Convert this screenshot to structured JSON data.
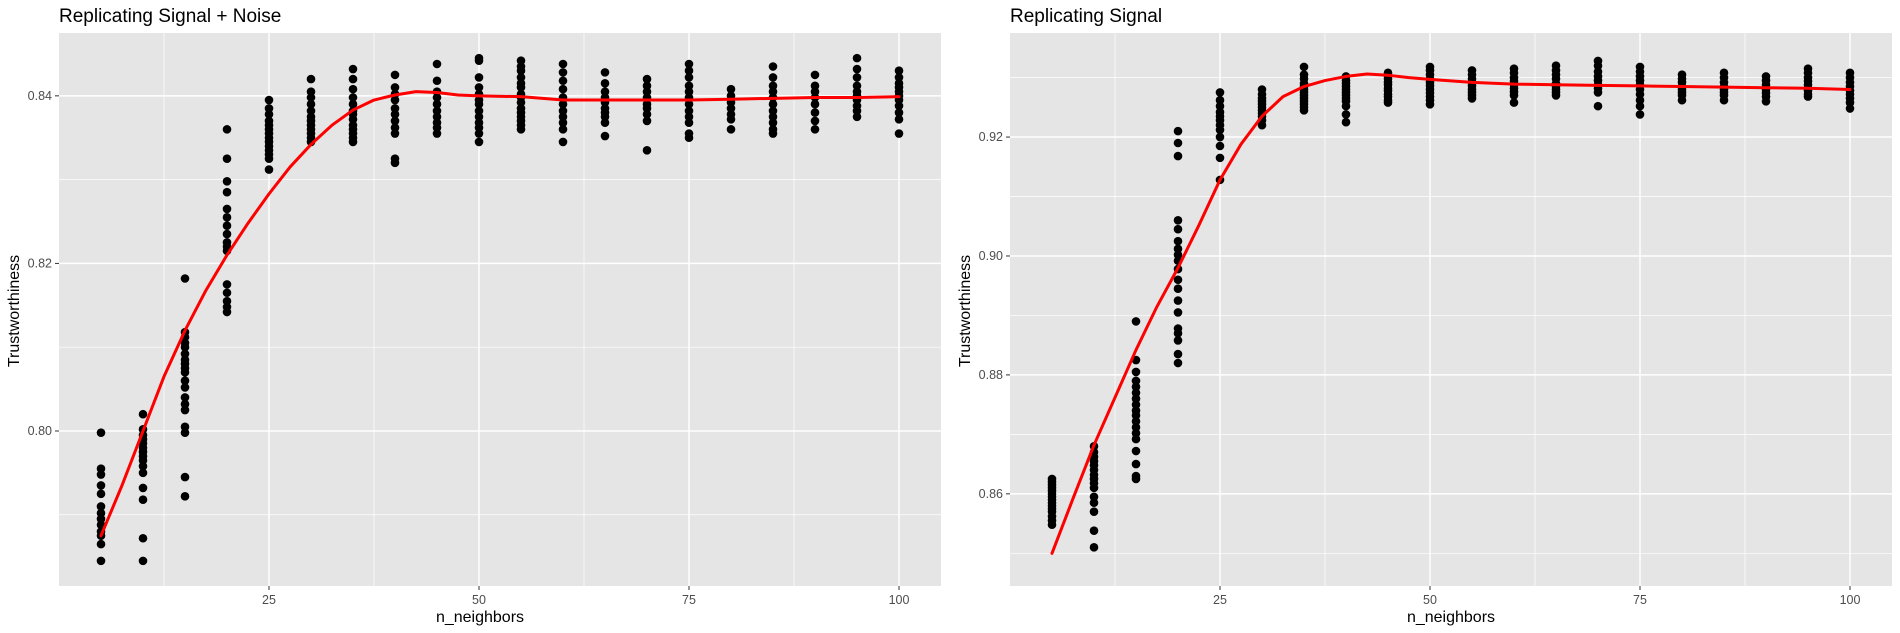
{
  "figure": {
    "background": "#ffffff",
    "panel_background": "#e5e5e5",
    "grid_color": "#ffffff",
    "point_color": "#000000",
    "smooth_color": "#ff0000"
  },
  "chart_data": [
    {
      "type": "scatter",
      "title": "Replicating Signal + Noise",
      "xlabel": "n_neighbors",
      "ylabel": "Trustworthiness",
      "xlim": [
        0,
        105
      ],
      "ylim": [
        0.7815,
        0.8475
      ],
      "xticks": [
        25,
        50,
        75,
        100
      ],
      "xtick_labels": [
        "25",
        "50",
        "75",
        "100"
      ],
      "yticks": [
        0.8,
        0.82,
        0.84
      ],
      "ytick_labels": [
        "0.80",
        "0.82",
        "0.84"
      ],
      "grid": true,
      "point_groups": [
        {
          "x": 5,
          "y": [
            0.7998,
            0.7955,
            0.7948,
            0.7935,
            0.7925,
            0.791,
            0.7902,
            0.7895,
            0.7888,
            0.788,
            0.7875,
            0.7865,
            0.7845
          ]
        },
        {
          "x": 10,
          "y": [
            0.802,
            0.8002,
            0.7995,
            0.799,
            0.7985,
            0.798,
            0.7975,
            0.797,
            0.7965,
            0.7958,
            0.795,
            0.7932,
            0.7918,
            0.7872,
            0.7845
          ]
        },
        {
          "x": 15,
          "y": [
            0.8182,
            0.8118,
            0.8112,
            0.8105,
            0.81,
            0.8092,
            0.8085,
            0.808,
            0.8075,
            0.807,
            0.806,
            0.8052,
            0.804,
            0.8032,
            0.8025,
            0.8005,
            0.7998,
            0.7945,
            0.7922
          ]
        },
        {
          "x": 20,
          "y": [
            0.836,
            0.8325,
            0.8298,
            0.8285,
            0.8265,
            0.8255,
            0.8245,
            0.8235,
            0.8225,
            0.822,
            0.8215,
            0.8175,
            0.8165,
            0.8155,
            0.8148,
            0.8142
          ]
        },
        {
          "x": 25,
          "y": [
            0.8395,
            0.8385,
            0.8378,
            0.837,
            0.8365,
            0.836,
            0.8355,
            0.835,
            0.8345,
            0.834,
            0.8335,
            0.833,
            0.8325,
            0.8312
          ]
        },
        {
          "x": 30,
          "y": [
            0.842,
            0.8405,
            0.8398,
            0.839,
            0.8382,
            0.8375,
            0.837,
            0.8365,
            0.836,
            0.8355,
            0.835,
            0.8345
          ]
        },
        {
          "x": 35,
          "y": [
            0.8432,
            0.842,
            0.8408,
            0.8398,
            0.839,
            0.8382,
            0.8378,
            0.8372,
            0.8365,
            0.836,
            0.8355,
            0.835,
            0.8345
          ]
        },
        {
          "x": 40,
          "y": [
            0.8425,
            0.841,
            0.8402,
            0.8395,
            0.8385,
            0.8378,
            0.837,
            0.8362,
            0.8355,
            0.8325,
            0.832
          ]
        },
        {
          "x": 45,
          "y": [
            0.8438,
            0.8418,
            0.8405,
            0.8398,
            0.839,
            0.8382,
            0.8375,
            0.8368,
            0.8362,
            0.8355
          ]
        },
        {
          "x": 50,
          "y": [
            0.8445,
            0.8442,
            0.8422,
            0.841,
            0.8402,
            0.8395,
            0.839,
            0.8382,
            0.8375,
            0.8368,
            0.8362,
            0.8355,
            0.8345
          ]
        },
        {
          "x": 55,
          "y": [
            0.8442,
            0.8435,
            0.843,
            0.8422,
            0.8415,
            0.841,
            0.8402,
            0.8398,
            0.8392,
            0.8385,
            0.838,
            0.8375,
            0.837,
            0.8365,
            0.836
          ]
        },
        {
          "x": 60,
          "y": [
            0.8438,
            0.8428,
            0.8418,
            0.8408,
            0.8398,
            0.839,
            0.8382,
            0.8375,
            0.8368,
            0.836,
            0.8345
          ]
        },
        {
          "x": 65,
          "y": [
            0.8428,
            0.8415,
            0.8405,
            0.8398,
            0.8392,
            0.8385,
            0.838,
            0.8375,
            0.8368,
            0.8352
          ]
        },
        {
          "x": 70,
          "y": [
            0.842,
            0.8412,
            0.8405,
            0.8398,
            0.839,
            0.8385,
            0.8378,
            0.837,
            0.8335
          ]
        },
        {
          "x": 75,
          "y": [
            0.8438,
            0.843,
            0.8422,
            0.8412,
            0.8405,
            0.8398,
            0.839,
            0.8382,
            0.8375,
            0.8368,
            0.8355,
            0.835
          ]
        },
        {
          "x": 80,
          "y": [
            0.8408,
            0.84,
            0.8392,
            0.8385,
            0.8378,
            0.8372,
            0.836
          ]
        },
        {
          "x": 85,
          "y": [
            0.8435,
            0.8422,
            0.8412,
            0.8405,
            0.8398,
            0.839,
            0.8382,
            0.8375,
            0.8368,
            0.836,
            0.8355
          ]
        },
        {
          "x": 90,
          "y": [
            0.8425,
            0.8412,
            0.8405,
            0.8398,
            0.839,
            0.838,
            0.837,
            0.836
          ]
        },
        {
          "x": 95,
          "y": [
            0.8445,
            0.8432,
            0.8422,
            0.8412,
            0.8405,
            0.84,
            0.8395,
            0.8388,
            0.8382,
            0.8375
          ]
        },
        {
          "x": 100,
          "y": [
            0.843,
            0.8422,
            0.8415,
            0.841,
            0.8405,
            0.84,
            0.8395,
            0.8388,
            0.838,
            0.8372,
            0.8355
          ]
        }
      ],
      "smooth_line": {
        "x": [
          5,
          7.5,
          10,
          12.5,
          15,
          17.5,
          20,
          22.5,
          25,
          27.5,
          30,
          32.5,
          35,
          37.5,
          40,
          42.5,
          45,
          47.5,
          50,
          55,
          60,
          65,
          70,
          75,
          80,
          85,
          90,
          95,
          100
        ],
        "y": [
          0.7875,
          0.7935,
          0.8,
          0.8065,
          0.812,
          0.8168,
          0.821,
          0.8248,
          0.8283,
          0.8315,
          0.8342,
          0.8365,
          0.8383,
          0.8395,
          0.8401,
          0.8405,
          0.8404,
          0.8401,
          0.84,
          0.8399,
          0.8395,
          0.8395,
          0.8395,
          0.8395,
          0.8396,
          0.8397,
          0.8398,
          0.8398,
          0.8399
        ]
      }
    },
    {
      "type": "scatter",
      "title": "Replicating Signal",
      "xlabel": "n_neighbors",
      "ylabel": "Trustworthiness",
      "xlim": [
        0,
        105
      ],
      "ylim": [
        0.8445,
        0.9375
      ],
      "xticks": [
        25,
        50,
        75,
        100
      ],
      "xtick_labels": [
        "25",
        "50",
        "75",
        "100"
      ],
      "yticks": [
        0.86,
        0.88,
        0.9,
        0.92
      ],
      "ytick_labels": [
        "0.86",
        "0.88",
        "0.90",
        "0.92"
      ],
      "grid": true,
      "point_groups": [
        {
          "x": 5,
          "y": [
            0.8625,
            0.862,
            0.8615,
            0.861,
            0.8605,
            0.86,
            0.8595,
            0.859,
            0.8585,
            0.858,
            0.8575,
            0.857,
            0.8562,
            0.8555,
            0.8548
          ]
        },
        {
          "x": 10,
          "y": [
            0.868,
            0.867,
            0.8662,
            0.8655,
            0.8648,
            0.864,
            0.8632,
            0.8625,
            0.8618,
            0.861,
            0.8595,
            0.8585,
            0.857,
            0.8538,
            0.851
          ]
        },
        {
          "x": 15,
          "y": [
            0.889,
            0.8825,
            0.8805,
            0.879,
            0.878,
            0.877,
            0.876,
            0.875,
            0.874,
            0.8732,
            0.8722,
            0.8712,
            0.8702,
            0.8692,
            0.8672,
            0.865,
            0.863,
            0.8625
          ]
        },
        {
          "x": 20,
          "y": [
            0.921,
            0.919,
            0.9168,
            0.906,
            0.9045,
            0.9025,
            0.9012,
            0.9002,
            0.8992,
            0.8978,
            0.896,
            0.8945,
            0.8925,
            0.8905,
            0.8878,
            0.887,
            0.8858,
            0.8835,
            0.882
          ]
        },
        {
          "x": 25,
          "y": [
            0.9275,
            0.9262,
            0.9252,
            0.9242,
            0.9235,
            0.9228,
            0.922,
            0.9212,
            0.92,
            0.9185,
            0.9165,
            0.9128
          ]
        },
        {
          "x": 30,
          "y": [
            0.928,
            0.9272,
            0.9265,
            0.926,
            0.9255,
            0.925,
            0.9245,
            0.924,
            0.9235,
            0.9228,
            0.922
          ]
        },
        {
          "x": 35,
          "y": [
            0.9318,
            0.9305,
            0.9298,
            0.929,
            0.9285,
            0.928,
            0.9275,
            0.927,
            0.9265,
            0.926,
            0.9255,
            0.925,
            0.9245
          ]
        },
        {
          "x": 40,
          "y": [
            0.9302,
            0.9295,
            0.929,
            0.9285,
            0.928,
            0.9275,
            0.927,
            0.9265,
            0.926,
            0.9252,
            0.9238,
            0.9225
          ]
        },
        {
          "x": 45,
          "y": [
            0.9308,
            0.9302,
            0.9298,
            0.9292,
            0.9288,
            0.9282,
            0.9278,
            0.9272,
            0.9268,
            0.9262,
            0.9258
          ]
        },
        {
          "x": 50,
          "y": [
            0.9318,
            0.9312,
            0.9305,
            0.9298,
            0.9292,
            0.9286,
            0.928,
            0.9274,
            0.9268,
            0.9262,
            0.9255
          ]
        },
        {
          "x": 55,
          "y": [
            0.9312,
            0.9305,
            0.9298,
            0.9292,
            0.9286,
            0.928,
            0.9275,
            0.927,
            0.9265
          ]
        },
        {
          "x": 60,
          "y": [
            0.9315,
            0.9308,
            0.93,
            0.9294,
            0.9288,
            0.9282,
            0.9276,
            0.927,
            0.9258
          ]
        },
        {
          "x": 65,
          "y": [
            0.932,
            0.9312,
            0.9305,
            0.9298,
            0.929,
            0.9285,
            0.928,
            0.9275,
            0.927
          ]
        },
        {
          "x": 70,
          "y": [
            0.9328,
            0.932,
            0.931,
            0.9302,
            0.9295,
            0.9288,
            0.9282,
            0.9275,
            0.9252
          ]
        },
        {
          "x": 75,
          "y": [
            0.9318,
            0.931,
            0.9302,
            0.9295,
            0.9288,
            0.928,
            0.9272,
            0.9262,
            0.9252,
            0.9238
          ]
        },
        {
          "x": 80,
          "y": [
            0.9305,
            0.9298,
            0.9292,
            0.9285,
            0.928,
            0.9275,
            0.927,
            0.9262
          ]
        },
        {
          "x": 85,
          "y": [
            0.9308,
            0.93,
            0.9292,
            0.9285,
            0.928,
            0.9275,
            0.927,
            0.9262
          ]
        },
        {
          "x": 90,
          "y": [
            0.9302,
            0.9295,
            0.9288,
            0.928,
            0.9274,
            0.9268,
            0.926
          ]
        },
        {
          "x": 95,
          "y": [
            0.9315,
            0.9308,
            0.93,
            0.9294,
            0.9288,
            0.9282,
            0.9278,
            0.9272,
            0.9268
          ]
        },
        {
          "x": 100,
          "y": [
            0.9308,
            0.93,
            0.9292,
            0.9285,
            0.9278,
            0.9272,
            0.9265,
            0.9258,
            0.9248
          ]
        }
      ],
      "smooth_line": {
        "x": [
          5,
          7.5,
          10,
          12.5,
          15,
          17.5,
          20,
          22.5,
          25,
          27.5,
          30,
          32.5,
          35,
          37.5,
          40,
          42.5,
          45,
          47.5,
          50,
          55,
          60,
          65,
          70,
          75,
          80,
          85,
          90,
          95,
          100
        ],
        "y": [
          0.85,
          0.8592,
          0.8682,
          0.8762,
          0.8842,
          0.8915,
          0.898,
          0.9052,
          0.9128,
          0.9188,
          0.9235,
          0.9268,
          0.9285,
          0.9295,
          0.9302,
          0.9306,
          0.9304,
          0.93,
          0.9297,
          0.9292,
          0.9289,
          0.9288,
          0.9287,
          0.9286,
          0.9285,
          0.9284,
          0.9283,
          0.9282,
          0.928
        ]
      }
    }
  ]
}
